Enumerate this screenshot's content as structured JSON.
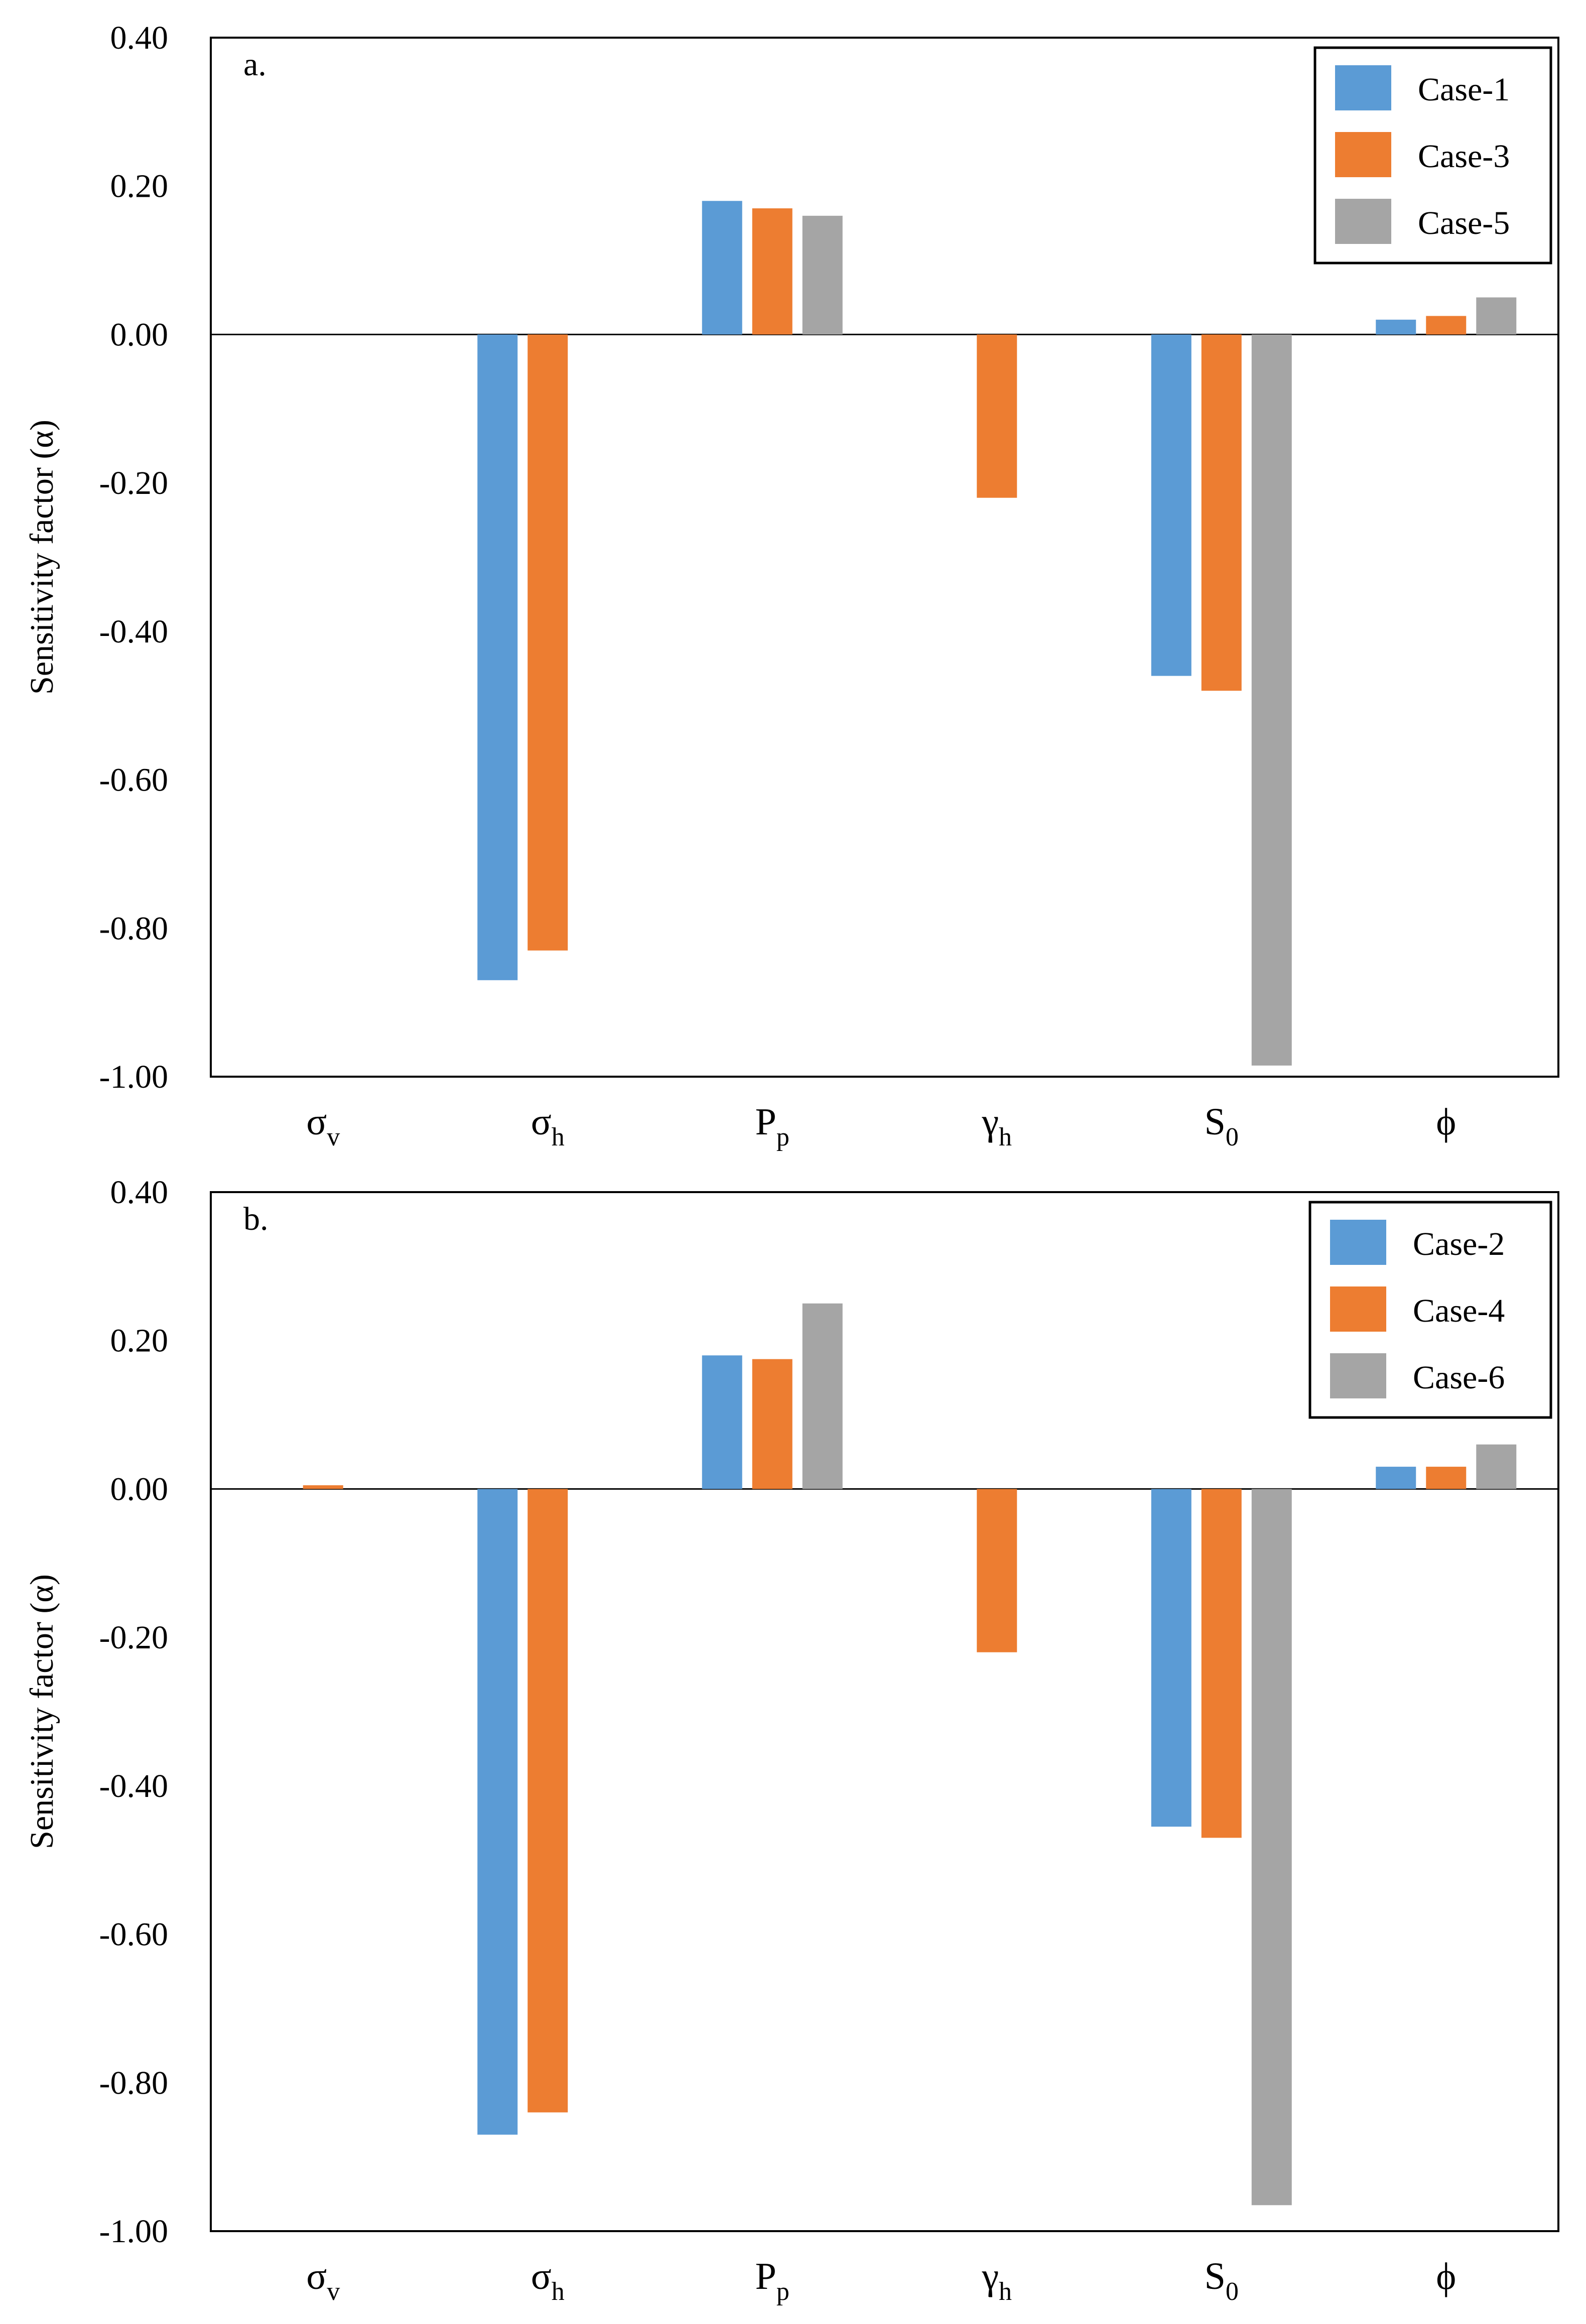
{
  "chart_data": [
    {
      "type": "bar",
      "panel_label": "a.",
      "ylabel": "Sensitivity factor (α)",
      "ylim": [
        -1.0,
        0.4
      ],
      "yticks": [
        0.4,
        0.2,
        0.0,
        -0.2,
        -0.4,
        -0.6,
        -0.8,
        -1.0
      ],
      "ytick_labels": [
        "0.40",
        "0.20",
        "0.00",
        "-0.20",
        "-0.40",
        "-0.60",
        "-0.80",
        "-1.00"
      ],
      "categories": [
        {
          "base": "σ",
          "sub": "v"
        },
        {
          "base": "σ",
          "sub": "h"
        },
        {
          "base": "P",
          "sub": "p"
        },
        {
          "base": "γ",
          "sub": "h"
        },
        {
          "base": "S",
          "sub": "0"
        },
        {
          "base": "ϕ",
          "sub": ""
        }
      ],
      "legend_position": "top-right",
      "series": [
        {
          "name": "Case-1",
          "color": "#5B9BD5",
          "values": [
            0.0,
            -0.87,
            0.18,
            0.0,
            -0.46,
            0.02
          ]
        },
        {
          "name": "Case-3",
          "color": "#ED7D31",
          "values": [
            0.0,
            -0.83,
            0.17,
            -0.22,
            -0.48,
            0.025
          ]
        },
        {
          "name": "Case-5",
          "color": "#A5A5A5",
          "values": [
            0.0,
            0.0,
            0.16,
            0.0,
            -0.985,
            0.05
          ]
        }
      ]
    },
    {
      "type": "bar",
      "panel_label": "b.",
      "ylabel": "Sensitivity factor (α)",
      "ylim": [
        -1.0,
        0.4
      ],
      "yticks": [
        0.4,
        0.2,
        0.0,
        -0.2,
        -0.4,
        -0.6,
        -0.8,
        -1.0
      ],
      "ytick_labels": [
        "0.40",
        "0.20",
        "0.00",
        "-0.20",
        "-0.40",
        "-0.60",
        "-0.80",
        "-1.00"
      ],
      "categories": [
        {
          "base": "σ",
          "sub": "v"
        },
        {
          "base": "σ",
          "sub": "h"
        },
        {
          "base": "P",
          "sub": "p"
        },
        {
          "base": "γ",
          "sub": "h"
        },
        {
          "base": "S",
          "sub": "0"
        },
        {
          "base": "ϕ",
          "sub": ""
        }
      ],
      "legend_position": "top-right",
      "series": [
        {
          "name": "Case-2",
          "color": "#5B9BD5",
          "values": [
            0.0,
            -0.87,
            0.18,
            0.0,
            -0.455,
            0.03
          ]
        },
        {
          "name": "Case-4",
          "color": "#ED7D31",
          "values": [
            0.005,
            -0.84,
            0.175,
            -0.22,
            -0.47,
            0.03
          ]
        },
        {
          "name": "Case-6",
          "color": "#A5A5A5",
          "values": [
            0.0,
            0.0,
            0.25,
            0.0,
            -0.965,
            0.06
          ]
        }
      ]
    }
  ]
}
